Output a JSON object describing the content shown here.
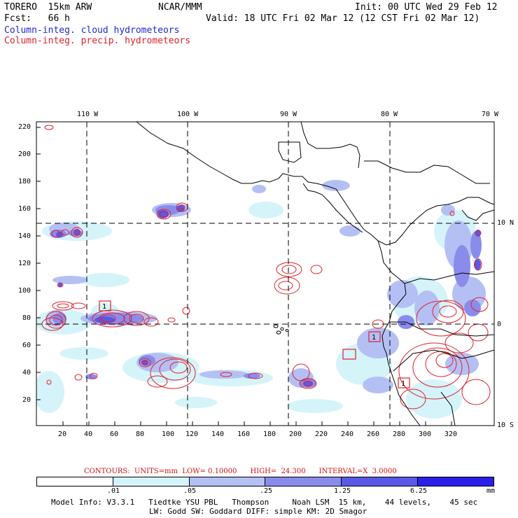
{
  "header": {
    "model": "TORERO  15km ARW",
    "center": "NCAR/MMM",
    "init": "Init: 00 UTC Wed 29 Feb 12",
    "fcst": "Fcst:   66 h",
    "valid": "Valid: 18 UTC Fri 02 Mar 12 (12 CST Fri 02 Mar 12)",
    "cloud_label": "Column-integ. cloud hydrometeors",
    "precip_label": "Column-integ. precip. hydrometeors"
  },
  "axes": {
    "top_lon": [
      "110 W",
      "100 W",
      "90 W",
      "80 W",
      "70 W"
    ],
    "right_lat": [
      "10 N",
      "0",
      "10 S"
    ],
    "left_y": [
      "220",
      "200",
      "180",
      "160",
      "140",
      "120",
      "100",
      "80",
      "60",
      "40",
      "20"
    ],
    "bottom_x": [
      "20",
      "40",
      "60",
      "80",
      "100",
      "120",
      "140",
      "160",
      "180",
      "200",
      "220",
      "240",
      "260",
      "280",
      "300",
      "320"
    ]
  },
  "contours": {
    "text": "CONTOURS:  UNITS=mm  LOW= 0.10000      HIGH=  24.300      INTERVAL=X  3.0000"
  },
  "colorbar": {
    "colors": [
      "#ffffff",
      "#d4f4fa",
      "#b4c0f4",
      "#8a8cec",
      "#5a58e6",
      "#2a20e8"
    ],
    "labels": [
      ".01",
      ".05",
      ".25",
      "1.25",
      "6.25"
    ],
    "units": "mm"
  },
  "model_info": {
    "line1": "Model Info: V3.3.1   Tiedtke YSU PBL   Thompson     Noah LSM  15 km,    44 levels,    45 sec",
    "line2": "LW: Godd SW: Goddard DIFF: simple KM: 2D Smagor"
  },
  "markers": [
    "1",
    "1",
    "1"
  ],
  "colors": {
    "cloud": "#1a2bd0",
    "precip": "#e0202a",
    "coast": "#000000"
  }
}
